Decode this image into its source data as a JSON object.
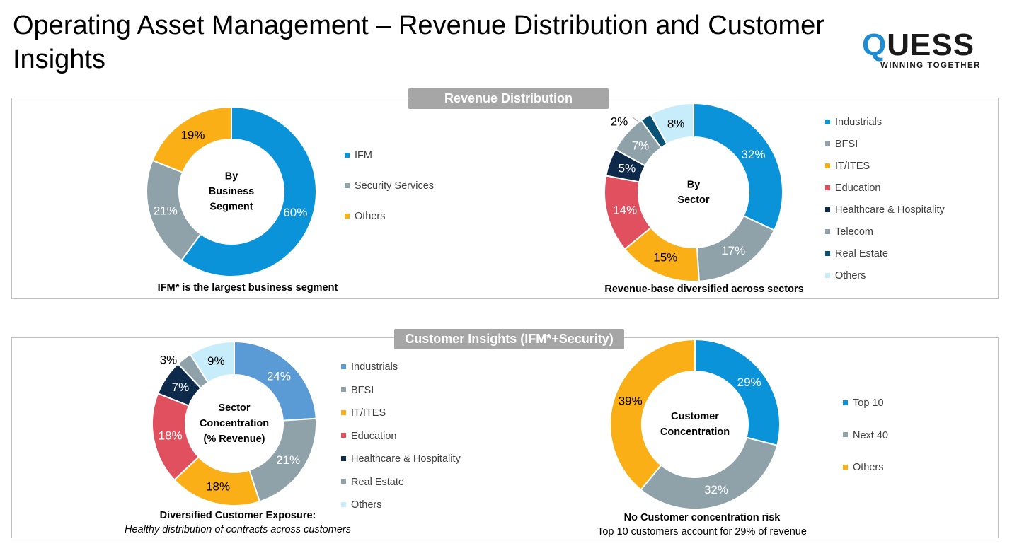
{
  "title": "Operating Asset Management – Revenue Distribution and Customer Insights",
  "logo": {
    "q": "Q",
    "rest": "UESS",
    "tagline": "WINNING TOGETHER"
  },
  "panels": {
    "top_label": "Revenue Distribution",
    "bottom_label": "Customer Insights (IFM*+Security)"
  },
  "colors": {
    "blue": "#0a93d9",
    "grey": "#8fa2aa",
    "orange": "#fbaf17",
    "red": "#e0505e",
    "navy": "#0d2a4a",
    "teal": "#0a5275",
    "lightblue": "#c7ecfa",
    "lightblue2": "#5b9bd5"
  },
  "captions": {
    "segment": "IFM* is the largest business segment",
    "sector": "Revenue-base diversified across sectors",
    "concentration_line1": "Diversified Customer Exposure:",
    "concentration_line2": "Healthy distribution of contracts across customers",
    "customer_line1": "No Customer concentration risk",
    "customer_line2": "Top 10 customers account for 29% of revenue"
  },
  "chart_data": [
    {
      "type": "pie",
      "center_label": [
        "By",
        "Business",
        "Segment"
      ],
      "categories": [
        "IFM",
        "Security Services",
        "Others"
      ],
      "values": [
        60,
        21,
        19
      ],
      "labels": [
        "60%",
        "21%",
        "19%"
      ],
      "colors": [
        "#0a93d9",
        "#8fa2aa",
        "#fbaf17"
      ],
      "legend_position": "right"
    },
    {
      "type": "pie",
      "center_label": [
        "By",
        "Sector"
      ],
      "categories": [
        "Industrials",
        "BFSI",
        "IT/ITES",
        "Education",
        "Healthcare & Hospitality",
        "Telecom",
        "Real Estate",
        "Others"
      ],
      "values": [
        32,
        17,
        15,
        14,
        5,
        7,
        2,
        8
      ],
      "labels": [
        "32%",
        "17%",
        "15%",
        "14%",
        "5%",
        "7%",
        "2%",
        "8%"
      ],
      "colors": [
        "#0a93d9",
        "#8fa2aa",
        "#fbaf17",
        "#e0505e",
        "#0d2a4a",
        "#8fa2aa",
        "#0a5275",
        "#c7ecfa"
      ],
      "legend_position": "right"
    },
    {
      "type": "pie",
      "center_label": [
        "Sector",
        "Concentration",
        "(% Revenue)"
      ],
      "categories": [
        "Industrials",
        "BFSI",
        "IT/ITES",
        "Education",
        "Healthcare & Hospitality",
        "Real Estate",
        "Others"
      ],
      "values": [
        24,
        21,
        18,
        18,
        7,
        3,
        9
      ],
      "labels": [
        "24%",
        "21%",
        "18%",
        "18%",
        "7%",
        "3%",
        "9%"
      ],
      "colors": [
        "#5b9bd5",
        "#8fa2aa",
        "#fbaf17",
        "#e0505e",
        "#0d2a4a",
        "#8fa2aa",
        "#c7ecfa"
      ],
      "legend_position": "right"
    },
    {
      "type": "pie",
      "center_label": [
        "Customer",
        "Concentration"
      ],
      "categories": [
        "Top 10",
        "Next 40",
        "Others"
      ],
      "values": [
        29,
        32,
        39
      ],
      "labels": [
        "29%",
        "32%",
        "39%"
      ],
      "colors": [
        "#0a93d9",
        "#8fa2aa",
        "#fbaf17"
      ],
      "legend_position": "right"
    }
  ]
}
